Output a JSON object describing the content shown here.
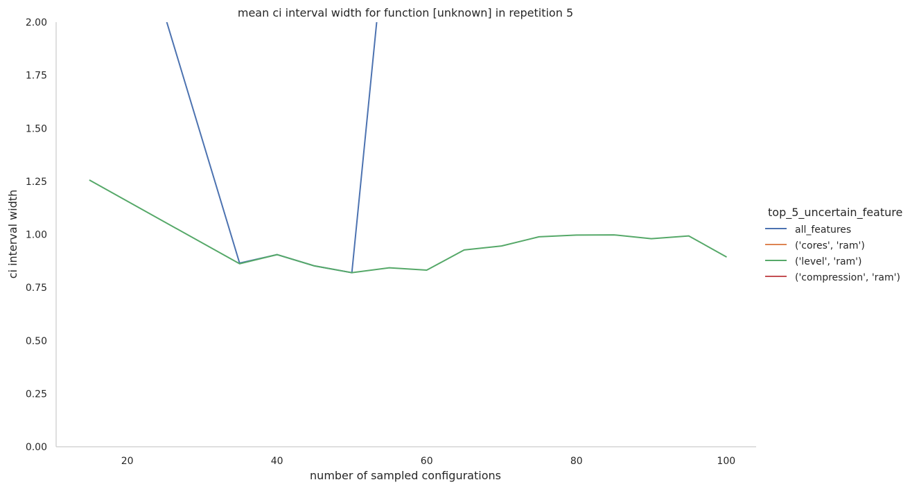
{
  "chart_data": {
    "type": "line",
    "title": "mean ci interval width for function [unknown] in repetition 5",
    "xlabel": "number of sampled configurations",
    "ylabel": "ci interval width",
    "xlim": [
      10.5,
      104
    ],
    "ylim": [
      0,
      2
    ],
    "xticks": [
      20,
      40,
      60,
      80,
      100
    ],
    "xtick_labels": [
      "20",
      "40",
      "60",
      "80",
      "100"
    ],
    "yticks": [
      0,
      0.25,
      0.5,
      0.75,
      1.0,
      1.25,
      1.5,
      1.75,
      2.0
    ],
    "ytick_labels": [
      "0.00",
      "0.25",
      "0.50",
      "0.75",
      "1.00",
      "1.25",
      "1.50",
      "1.75",
      "2.00"
    ],
    "grid": false,
    "legend_title": "top_5_uncertain_feature",
    "legend_position": "right",
    "series": [
      {
        "name": "all_features",
        "color": "#4c72b0",
        "x": [
          15,
          35,
          40,
          45,
          50,
          55
        ],
        "y": [
          3.2,
          0.865,
          0.905,
          0.852,
          0.82,
          2.6
        ]
      },
      {
        "name": "('cores', 'ram')",
        "color": "#dd8452",
        "x": [],
        "y": []
      },
      {
        "name": "('level', 'ram')",
        "color": "#55a868",
        "x": [
          15,
          35,
          40,
          45,
          50,
          55,
          60,
          65,
          70,
          75,
          80,
          85,
          90,
          95,
          100
        ],
        "y": [
          1.255,
          0.862,
          0.905,
          0.852,
          0.82,
          0.843,
          0.832,
          0.927,
          0.946,
          0.989,
          0.997,
          0.998,
          0.98,
          0.993,
          0.895
        ]
      },
      {
        "name": "('compression', 'ram')",
        "color": "#c44e52",
        "x": [],
        "y": []
      }
    ]
  }
}
